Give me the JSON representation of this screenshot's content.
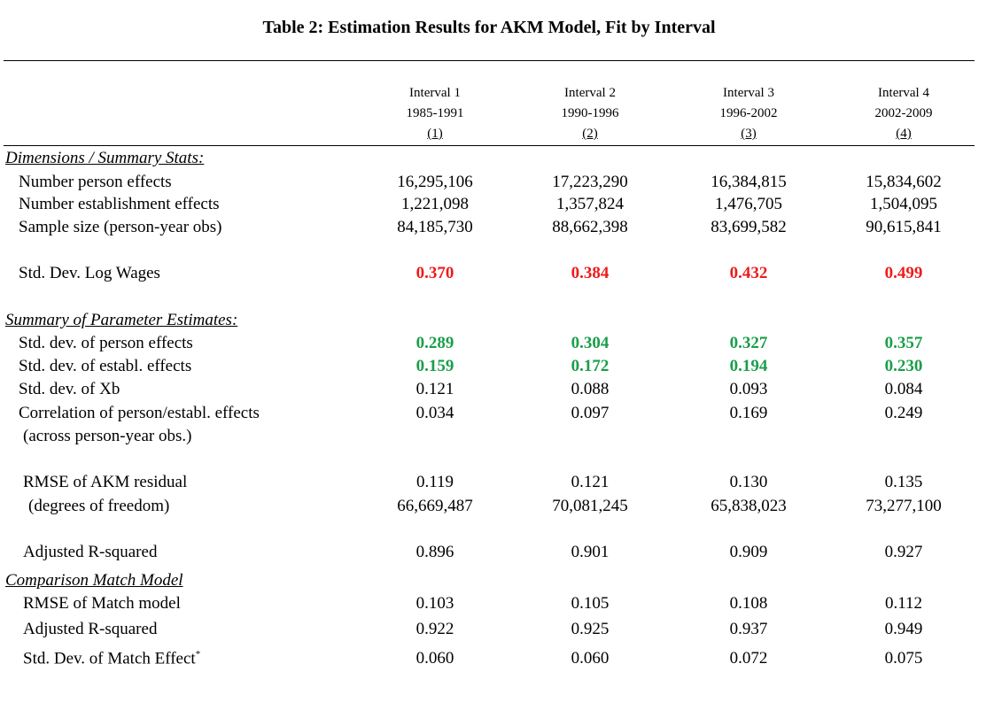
{
  "title": "Table 2: Estimation Results for AKM Model, Fit by Interval",
  "columns": [
    {
      "name": "Interval 1",
      "years": "1985-1991",
      "num": "(1)"
    },
    {
      "name": "Interval 2",
      "years": "1990-1996",
      "num": "(2)"
    },
    {
      "name": "Interval 3",
      "years": "1996-2002",
      "num": "(3)"
    },
    {
      "name": "Interval 4",
      "years": "2002-2009",
      "num": "(4)"
    }
  ],
  "sections": {
    "dimensions": "Dimensions / Summary Stats:",
    "params": "Summary of Parameter Estimates:",
    "match": "Comparison Match Model"
  },
  "rows": {
    "person_effects": {
      "label": "Number person effects",
      "values": [
        "16,295,106",
        "17,223,290",
        "16,384,815",
        "15,834,602"
      ]
    },
    "estab_effects": {
      "label": "Number establishment effects",
      "values": [
        "1,221,098",
        "1,357,824",
        "1,476,705",
        "1,504,095"
      ]
    },
    "sample_size": {
      "label": "Sample size (person-year obs)",
      "values": [
        "84,185,730",
        "88,662,398",
        "83,699,582",
        "90,615,841"
      ]
    },
    "sd_log_wages": {
      "label": "Std. Dev. Log Wages",
      "values": [
        "0.370",
        "0.384",
        "0.432",
        "0.499"
      ]
    },
    "sd_person": {
      "label": "Std. dev. of person effects",
      "values": [
        "0.289",
        "0.304",
        "0.327",
        "0.357"
      ]
    },
    "sd_estab": {
      "label": "Std. dev. of establ. effects",
      "values": [
        "0.159",
        "0.172",
        "0.194",
        "0.230"
      ]
    },
    "sd_xb": {
      "label": "Std. dev. of Xb",
      "values": [
        "0.121",
        "0.088",
        "0.093",
        "0.084"
      ]
    },
    "corr": {
      "label": "Correlation of person/establ. effects",
      "values": [
        "0.034",
        "0.097",
        "0.169",
        "0.249"
      ]
    },
    "corr_note": {
      "label": "(across person-year obs.)"
    },
    "rmse": {
      "label": "RMSE of AKM residual",
      "values": [
        "0.119",
        "0.121",
        "0.130",
        "0.135"
      ]
    },
    "dof": {
      "label": "(degrees of freedom)",
      "values": [
        "66,669,487",
        "70,081,245",
        "65,838,023",
        "73,277,100"
      ]
    },
    "adj_r2": {
      "label": "Adjusted R-squared",
      "values": [
        "0.896",
        "0.901",
        "0.909",
        "0.927"
      ]
    },
    "rmse_match": {
      "label": "RMSE of Match model",
      "values": [
        "0.103",
        "0.105",
        "0.108",
        "0.112"
      ]
    },
    "adj_r2_match": {
      "label": "Adjusted R-squared",
      "values": [
        "0.922",
        "0.925",
        "0.937",
        "0.949"
      ]
    },
    "sd_match": {
      "label": "Std. Dev. of Match Effect",
      "label_sup": "*",
      "values": [
        "0.060",
        "0.060",
        "0.072",
        "0.075"
      ]
    }
  },
  "colors": {
    "highlight_red": "#ee1b1b",
    "highlight_green": "#1a9e4a"
  }
}
